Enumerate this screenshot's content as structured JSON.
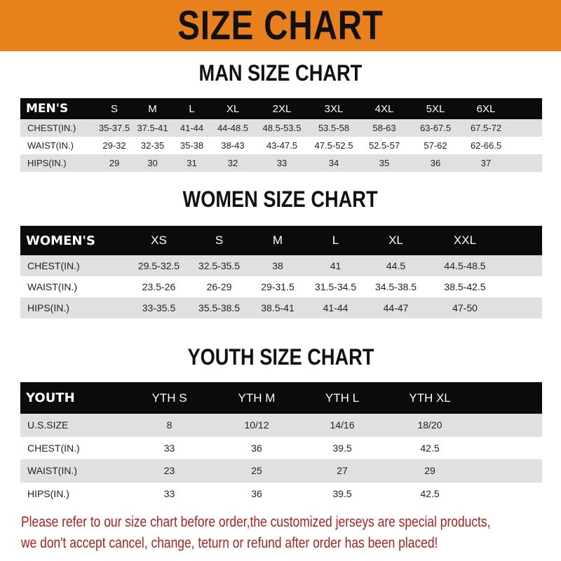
{
  "banner_title": "SIZE CHART",
  "men": {
    "title": "MAN SIZE CHART",
    "header_label": "MEN'S",
    "sizes": [
      "S",
      "M",
      "L",
      "XL",
      "2XL",
      "3XL",
      "4XL",
      "5XL",
      "6XL"
    ],
    "rows": [
      {
        "label": "CHEST(IN.)",
        "values": [
          "35-37.5",
          "37.5-41",
          "41-44",
          "44-48.5",
          "48.5-53.5",
          "53.5-58",
          "58-63",
          "63-67.5",
          "67.5-72"
        ]
      },
      {
        "label": "WAIST(IN.)",
        "values": [
          "29-32",
          "32-35",
          "35-38",
          "38-43",
          "43-47.5",
          "47.5-52.5",
          "52.5-57",
          "57-62",
          "62-66.5"
        ]
      },
      {
        "label": "HIPS(IN.)",
        "values": [
          "29",
          "30",
          "31",
          "32",
          "33",
          "34",
          "35",
          "36",
          "37"
        ]
      }
    ]
  },
  "women": {
    "title": "WOMEN SIZE CHART",
    "header_label": "WOMEN'S",
    "sizes": [
      "XS",
      "S",
      "M",
      "L",
      "XL",
      "XXL"
    ],
    "rows": [
      {
        "label": "CHEST(IN.)",
        "values": [
          "29.5-32.5",
          "32.5-35.5",
          "38",
          "41",
          "44.5",
          "44.5-48.5"
        ]
      },
      {
        "label": "WAIST(IN.)",
        "values": [
          "23.5-26",
          "26-29",
          "29-31.5",
          "31.5-34.5",
          "34.5-38.5",
          "38.5-42.5"
        ]
      },
      {
        "label": "HIPS(IN.)",
        "values": [
          "33-35.5",
          "35.5-38.5",
          "38.5-41",
          "41-44",
          "44-47",
          "47-50"
        ]
      }
    ]
  },
  "youth": {
    "title": "YOUTH SIZE CHART",
    "header_label": "YOUTH",
    "sizes": [
      "YTH S",
      "YTH M",
      "YTH L",
      "YTH XL"
    ],
    "rows": [
      {
        "label": "U.S.SIZE",
        "values": [
          "8",
          "10/12",
          "14/16",
          "18/20"
        ]
      },
      {
        "label": "CHEST(IN.)",
        "values": [
          "33",
          "36",
          "39.5",
          "42.5"
        ]
      },
      {
        "label": "WAIST(IN.)",
        "values": [
          "23",
          "25",
          "27",
          "29"
        ]
      },
      {
        "label": "HIPS(IN.)",
        "values": [
          "33",
          "36",
          "39.5",
          "42.5"
        ]
      }
    ]
  },
  "notice": [
    "Please refer to our size chart before order,the customized jerseys are special products,",
    "we don't accept cancel, change, teturn or refund after order has been placed!"
  ],
  "colors": {
    "banner": "#E8801C",
    "header_row": "#0b0b0b",
    "stripe": "#e0e0e0",
    "notice": "#B3201E"
  }
}
